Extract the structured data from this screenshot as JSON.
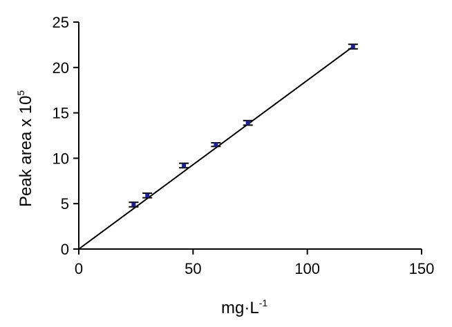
{
  "chart_data": {
    "type": "scatter",
    "xlabel": "mg·L",
    "xlabel_superscript": "-1",
    "ylabel": "Peak area x 10",
    "ylabel_superscript": "5",
    "xlim": [
      0,
      150
    ],
    "ylim": [
      0,
      25
    ],
    "x_ticks": [
      0,
      50,
      100,
      150
    ],
    "y_ticks": [
      0,
      5,
      10,
      15,
      20,
      25
    ],
    "grid": false,
    "series": [
      {
        "points": [
          {
            "x": 24,
            "y": 4.9,
            "err": 0.25
          },
          {
            "x": 30,
            "y": 5.9,
            "err": 0.25
          },
          {
            "x": 46,
            "y": 9.2,
            "err": 0.25
          },
          {
            "x": 60,
            "y": 11.5,
            "err": 0.2
          },
          {
            "x": 74,
            "y": 13.9,
            "err": 0.25
          },
          {
            "x": 120,
            "y": 22.3,
            "err": 0.25
          }
        ],
        "marker_color": "#1f1f8f"
      }
    ],
    "fit_line": {
      "x": [
        0,
        120
      ],
      "y": [
        0,
        22.3
      ]
    }
  }
}
